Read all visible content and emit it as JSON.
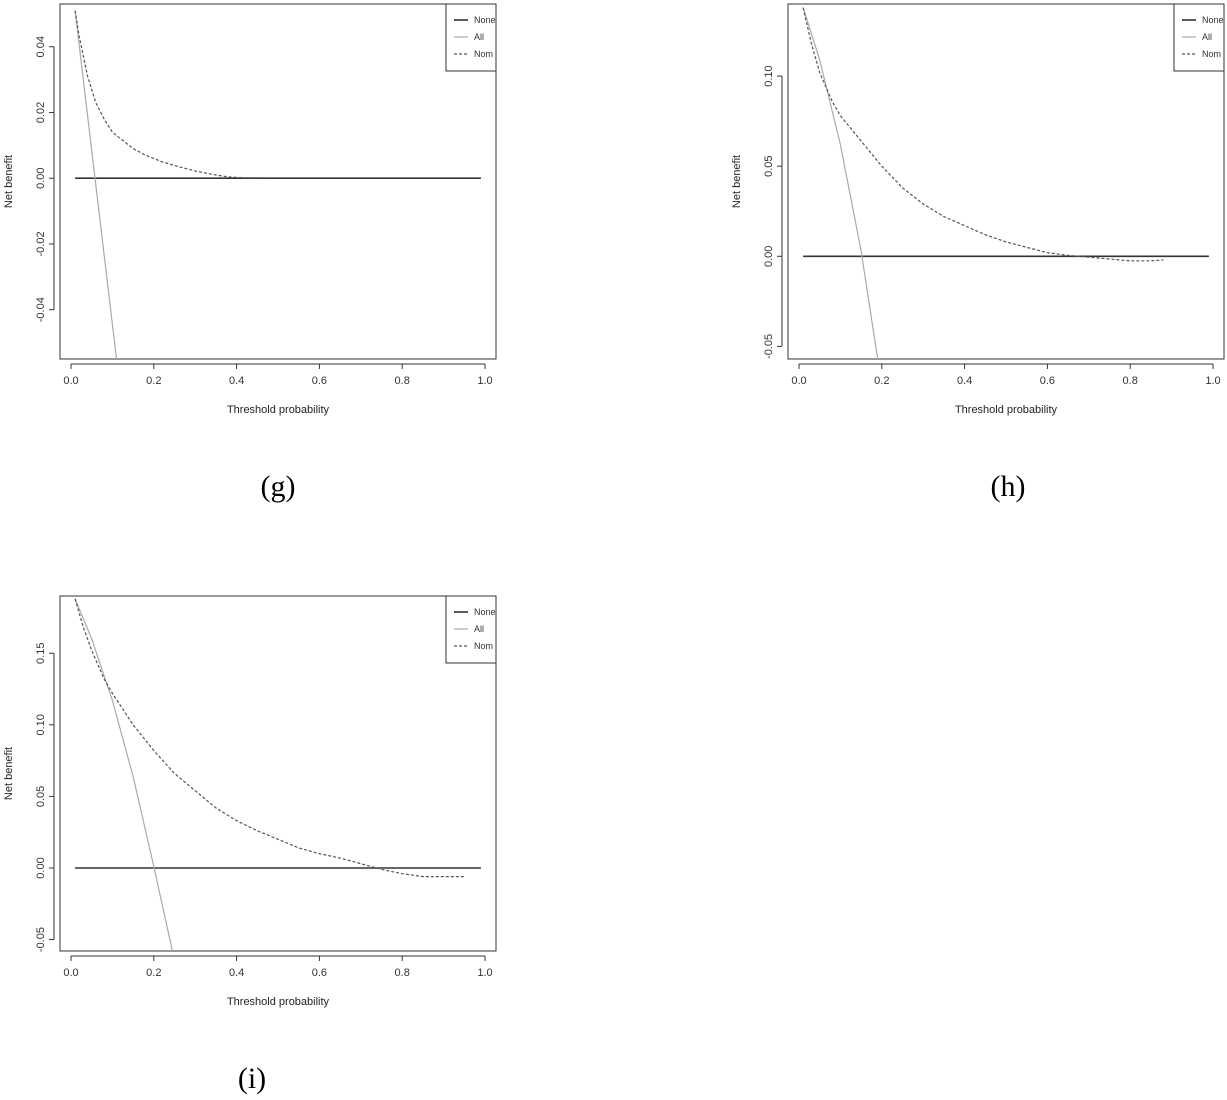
{
  "chart_data": [
    {
      "type": "line",
      "panel_label": "(g)",
      "xlabel": "Threshold probability",
      "ylabel": "Net benefit",
      "xlim": [
        0,
        1
      ],
      "ylim": [
        -0.055,
        0.053
      ],
      "xticks": [
        0,
        0.2,
        0.4,
        0.6,
        0.8,
        1
      ],
      "xtick_labels": [
        "0.0",
        "0.2",
        "0.4",
        "0.6",
        "0.8",
        "1.0"
      ],
      "yticks": [
        -0.04,
        -0.02,
        0,
        0.02,
        0.04
      ],
      "ytick_labels": [
        "-0.04",
        "-0.02",
        "0.00",
        "0.02",
        "0.04"
      ],
      "legend": {
        "position": "top-right",
        "entries": [
          "None",
          "All",
          "Nom"
        ]
      },
      "series": [
        {
          "name": "None",
          "color": "#333333",
          "style": "solid",
          "x": [
            0.01,
            0.99
          ],
          "y": [
            0,
            0
          ]
        },
        {
          "name": "All",
          "color": "#aaaaaa",
          "style": "solid",
          "x": [
            0.01,
            0.11
          ],
          "y": [
            0.051,
            -0.055
          ]
        },
        {
          "name": "Nom",
          "color": "#555555",
          "style": "dashed",
          "x": [
            0.01,
            0.02,
            0.04,
            0.06,
            0.08,
            0.1,
            0.12,
            0.15,
            0.18,
            0.22,
            0.26,
            0.3,
            0.34,
            0.38,
            0.42,
            0.47
          ],
          "y": [
            0.051,
            0.043,
            0.031,
            0.023,
            0.018,
            0.014,
            0.012,
            0.009,
            0.007,
            0.005,
            0.0035,
            0.0022,
            0.0012,
            0.0004,
            0.0001,
            0.0001
          ]
        }
      ]
    },
    {
      "type": "line",
      "panel_label": "(h)",
      "xlabel": "Threshold probability",
      "ylabel": "Net benefit",
      "xlim": [
        0,
        1
      ],
      "ylim": [
        -0.057,
        0.14
      ],
      "xticks": [
        0,
        0.2,
        0.4,
        0.6,
        0.8,
        1
      ],
      "xtick_labels": [
        "0.0",
        "0.2",
        "0.4",
        "0.6",
        "0.8",
        "1.0"
      ],
      "yticks": [
        -0.05,
        0,
        0.05,
        0.1
      ],
      "ytick_labels": [
        "-0.05",
        "0.00",
        "0.05",
        "0.10"
      ],
      "legend": {
        "position": "top-right",
        "entries": [
          "None",
          "All",
          "Nom"
        ]
      },
      "series": [
        {
          "name": "None",
          "color": "#333333",
          "style": "solid",
          "x": [
            0.01,
            0.99
          ],
          "y": [
            0,
            0
          ]
        },
        {
          "name": "All",
          "color": "#aaaaaa",
          "style": "solid",
          "x": [
            0.01,
            0.05,
            0.1,
            0.15,
            0.19
          ],
          "y": [
            0.138,
            0.109,
            0.062,
            0.003,
            -0.057
          ]
        },
        {
          "name": "Nom",
          "color": "#555555",
          "style": "dashed",
          "x": [
            0.01,
            0.03,
            0.05,
            0.08,
            0.1,
            0.15,
            0.2,
            0.25,
            0.3,
            0.35,
            0.4,
            0.45,
            0.5,
            0.55,
            0.6,
            0.65,
            0.7,
            0.75,
            0.8,
            0.85,
            0.88
          ],
          "y": [
            0.138,
            0.118,
            0.102,
            0.086,
            0.078,
            0.064,
            0.05,
            0.038,
            0.029,
            0.022,
            0.017,
            0.012,
            0.008,
            0.005,
            0.002,
            0.0005,
            -0.0005,
            -0.0015,
            -0.0025,
            -0.0025,
            -0.002
          ]
        }
      ]
    },
    {
      "type": "line",
      "panel_label": "(i)",
      "xlabel": "Threshold probability",
      "ylabel": "Net benefit",
      "xlim": [
        0,
        1
      ],
      "ylim": [
        -0.058,
        0.19
      ],
      "xticks": [
        0,
        0.2,
        0.4,
        0.6,
        0.8,
        1
      ],
      "xtick_labels": [
        "0.0",
        "0.2",
        "0.4",
        "0.6",
        "0.8",
        "1.0"
      ],
      "yticks": [
        -0.05,
        0,
        0.05,
        0.1,
        0.15
      ],
      "ytick_labels": [
        "-0.05",
        "0.00",
        "0.05",
        "0.10",
        "0.15"
      ],
      "legend": {
        "position": "top-right",
        "entries": [
          "None",
          "All",
          "Nom"
        ]
      },
      "series": [
        {
          "name": "None",
          "color": "#333333",
          "style": "solid",
          "x": [
            0.01,
            0.99
          ],
          "y": [
            0,
            0
          ]
        },
        {
          "name": "All",
          "color": "#aaaaaa",
          "style": "solid",
          "x": [
            0.01,
            0.05,
            0.1,
            0.15,
            0.2,
            0.245
          ],
          "y": [
            0.188,
            0.16,
            0.117,
            0.064,
            0.001,
            -0.058
          ]
        },
        {
          "name": "Nom",
          "color": "#555555",
          "style": "dashed",
          "x": [
            0.01,
            0.03,
            0.05,
            0.08,
            0.1,
            0.15,
            0.2,
            0.25,
            0.3,
            0.35,
            0.4,
            0.45,
            0.5,
            0.55,
            0.6,
            0.65,
            0.7,
            0.75,
            0.8,
            0.85,
            0.9,
            0.95
          ],
          "y": [
            0.188,
            0.168,
            0.152,
            0.132,
            0.122,
            0.1,
            0.082,
            0.066,
            0.054,
            0.042,
            0.033,
            0.026,
            0.02,
            0.014,
            0.01,
            0.007,
            0.003,
            -0.001,
            -0.004,
            -0.006,
            -0.006,
            -0.006
          ]
        }
      ]
    }
  ]
}
